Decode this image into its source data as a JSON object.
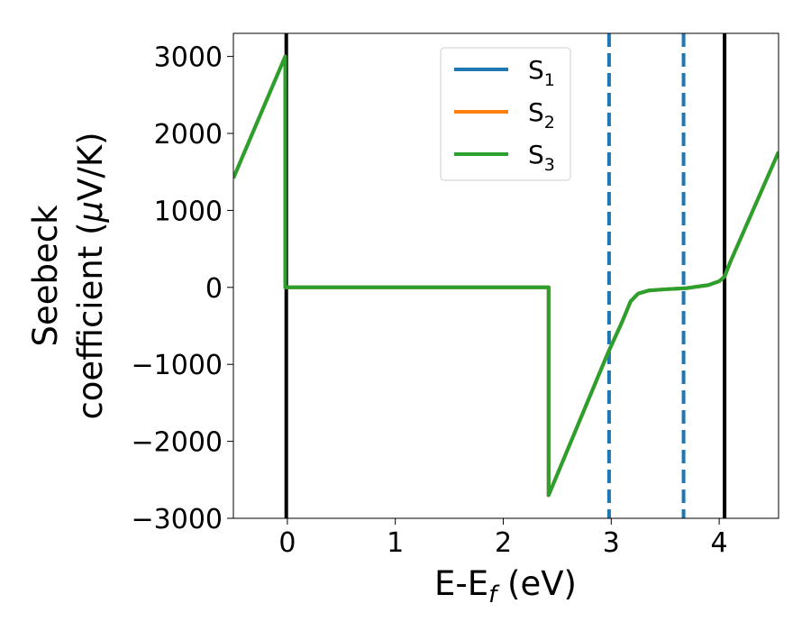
{
  "chart_data": {
    "type": "line",
    "xlabel": "E-E",
    "xlabel_sub": "f",
    "xlabel_unit": " (eV)",
    "ylabel_line1": "Seebeck",
    "ylabel_line2": "coefficient  (",
    "ylabel_mu": "μ",
    "ylabel_unit": "V/K)",
    "xlim": [
      -0.5,
      4.55
    ],
    "ylim": [
      -3000,
      3300
    ],
    "xticks": [
      0,
      1,
      2,
      3,
      4
    ],
    "yticks": [
      -3000,
      -2000,
      -1000,
      0,
      1000,
      2000,
      3000
    ],
    "ytick_labels": [
      "−3000",
      "−2000",
      "−1000",
      "0",
      "1000",
      "2000",
      "3000"
    ],
    "grid": false,
    "legend_position": "upper-center",
    "series": [
      {
        "name": "S",
        "sub": "1",
        "color": "#1f77b4",
        "x": [
          -0.5,
          -0.02,
          -0.02,
          2.42,
          2.42,
          2.97,
          3.1,
          3.18,
          3.25,
          3.35,
          3.5,
          3.7,
          3.9,
          4.0,
          4.05,
          4.1,
          4.55
        ],
        "y": [
          1420,
          3000,
          0,
          0,
          -2700,
          -850,
          -450,
          -180,
          -80,
          -40,
          -25,
          -10,
          30,
          80,
          140,
          320,
          1760
        ]
      },
      {
        "name": "S",
        "sub": "2",
        "color": "#ff7f0e",
        "x": [
          -0.5,
          -0.02,
          -0.02,
          2.42,
          2.42,
          2.97,
          3.1,
          3.18,
          3.25,
          3.35,
          3.5,
          3.7,
          3.9,
          4.0,
          4.05,
          4.1,
          4.55
        ],
        "y": [
          1420,
          3000,
          0,
          0,
          -2700,
          -850,
          -450,
          -180,
          -80,
          -40,
          -25,
          -10,
          30,
          80,
          140,
          320,
          1760
        ]
      },
      {
        "name": "S",
        "sub": "3",
        "color": "#2ca02c",
        "x": [
          -0.5,
          -0.02,
          -0.02,
          2.42,
          2.42,
          2.97,
          3.1,
          3.18,
          3.25,
          3.35,
          3.5,
          3.7,
          3.9,
          4.0,
          4.05,
          4.1,
          4.55
        ],
        "y": [
          1420,
          3000,
          0,
          0,
          -2700,
          -850,
          -450,
          -180,
          -80,
          -40,
          -25,
          -10,
          30,
          80,
          140,
          320,
          1760
        ]
      }
    ],
    "vlines_solid": {
      "x": [
        -0.01,
        4.05
      ],
      "color": "#000000"
    },
    "vlines_dashed": {
      "x": [
        2.98,
        3.67
      ],
      "color": "#1f77b4"
    }
  }
}
